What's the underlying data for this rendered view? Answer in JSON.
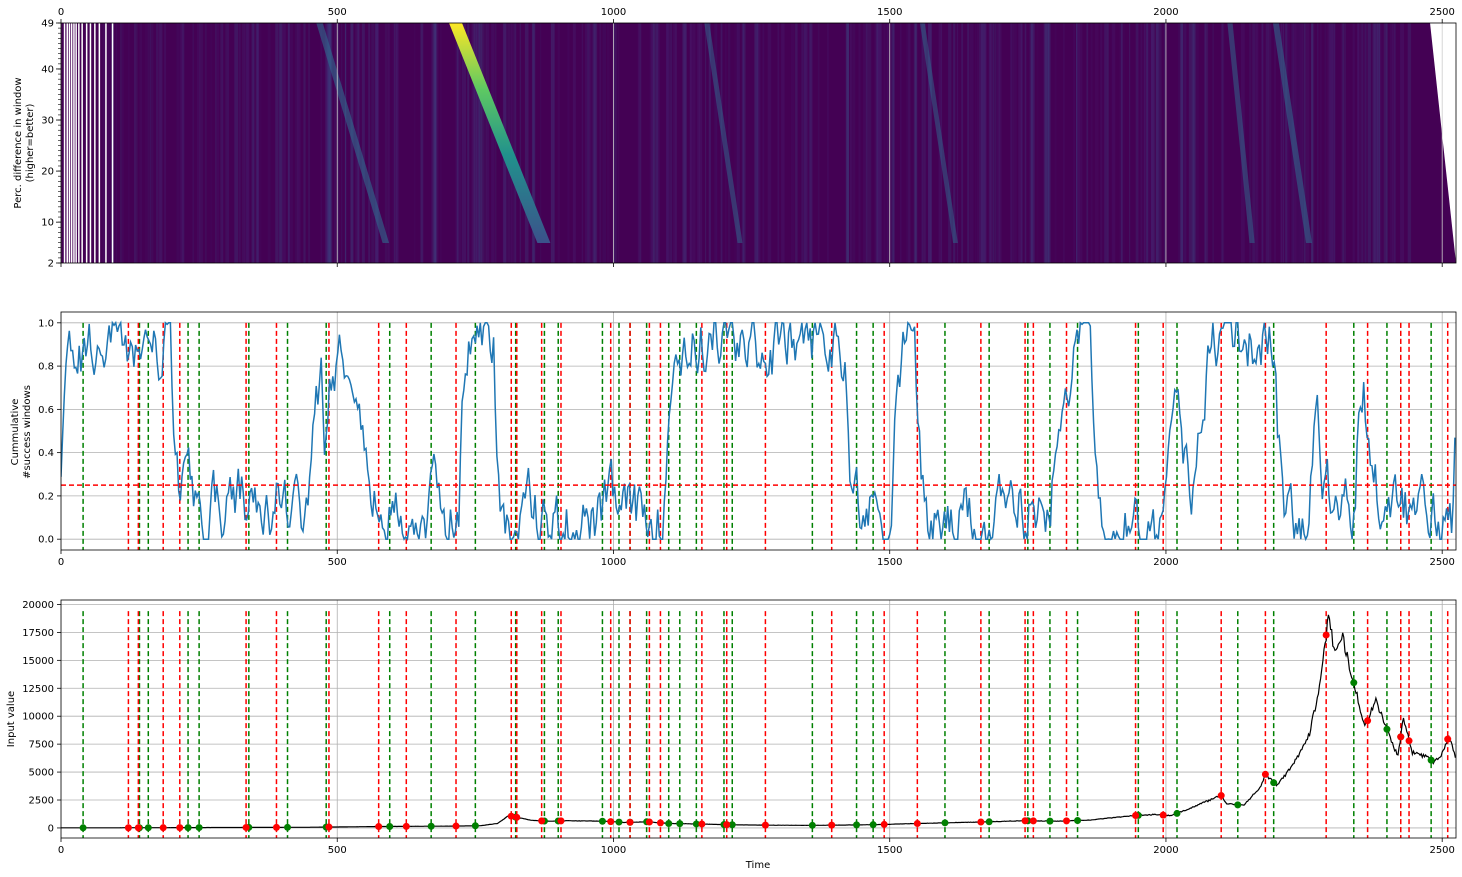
{
  "chart_data": [
    {
      "type": "heatmap",
      "ylabel_line1": "Perc. difference in window",
      "ylabel_line2": "(higher=better)",
      "xlim": [
        0,
        2525
      ],
      "ylim": [
        2,
        49
      ],
      "x_ticks": [
        0,
        500,
        1000,
        1500,
        2000,
        2500
      ],
      "y_ticks": [
        2,
        10,
        20,
        30,
        40,
        49
      ],
      "tick_position_x": "top",
      "hotspots": [
        {
          "x": 510,
          "slope": 120,
          "peak": 0.35
        },
        {
          "x": 770,
          "slope": 160,
          "peak": 1.0
        },
        {
          "x": 1190,
          "slope": 60,
          "peak": 0.2
        },
        {
          "x": 1580,
          "slope": 60,
          "peak": 0.18
        },
        {
          "x": 2130,
          "slope": 40,
          "peak": 0.22
        },
        {
          "x": 2220,
          "slope": 60,
          "peak": 0.3
        }
      ]
    },
    {
      "type": "line",
      "ylabel_line1": "Cummulative",
      "ylabel_line2": "#success windows",
      "xlim": [
        0,
        2525
      ],
      "ylim": [
        -0.05,
        1.05
      ],
      "x_ticks": [
        0,
        500,
        1000,
        1500,
        2000,
        2500
      ],
      "y_ticks": [
        0.0,
        0.2,
        0.4,
        0.6,
        0.8,
        1.0
      ],
      "y_tick_labels": [
        "0.0",
        "0.2",
        "0.4",
        "0.6",
        "0.8",
        "1.0"
      ],
      "threshold": 0.25,
      "colors": {
        "line": "#1f77b4",
        "buy": "#008000",
        "sell": "#ff0000",
        "threshold": "#ff0000"
      }
    },
    {
      "type": "line",
      "ylabel": "Input value",
      "xlabel": "Time",
      "xlim": [
        0,
        2525
      ],
      "ylim": [
        -900,
        20400
      ],
      "x_ticks": [
        0,
        500,
        1000,
        1500,
        2000,
        2500
      ],
      "y_ticks": [
        0,
        2500,
        5000,
        7500,
        10000,
        12500,
        15000,
        17500,
        20000
      ],
      "y_tick_labels": [
        "0",
        "2500",
        "5000",
        "7500",
        "10000",
        "12500",
        "15000",
        "17500",
        "20000"
      ],
      "price_points": [
        [
          0,
          10
        ],
        [
          150,
          20
        ],
        [
          300,
          40
        ],
        [
          450,
          60
        ],
        [
          560,
          120
        ],
        [
          650,
          150
        ],
        [
          700,
          160
        ],
        [
          760,
          200
        ],
        [
          790,
          400
        ],
        [
          810,
          1100
        ],
        [
          830,
          900
        ],
        [
          850,
          700
        ],
        [
          880,
          600
        ],
        [
          920,
          650
        ],
        [
          980,
          600
        ],
        [
          1020,
          500
        ],
        [
          1060,
          550
        ],
        [
          1100,
          400
        ],
        [
          1160,
          350
        ],
        [
          1220,
          280
        ],
        [
          1280,
          250
        ],
        [
          1350,
          230
        ],
        [
          1420,
          260
        ],
        [
          1480,
          300
        ],
        [
          1550,
          400
        ],
        [
          1620,
          480
        ],
        [
          1680,
          550
        ],
        [
          1740,
          650
        ],
        [
          1800,
          600
        ],
        [
          1860,
          700
        ],
        [
          1940,
          1100
        ],
        [
          1980,
          1200
        ],
        [
          2010,
          1100
        ],
        [
          2060,
          2100
        ],
        [
          2100,
          2900
        ],
        [
          2110,
          2200
        ],
        [
          2140,
          2000
        ],
        [
          2170,
          3600
        ],
        [
          2180,
          4800
        ],
        [
          2200,
          3800
        ],
        [
          2230,
          5600
        ],
        [
          2260,
          8500
        ],
        [
          2280,
          13000
        ],
        [
          2295,
          19400
        ],
        [
          2305,
          15500
        ],
        [
          2320,
          17000
        ],
        [
          2340,
          13000
        ],
        [
          2360,
          9000
        ],
        [
          2380,
          11400
        ],
        [
          2395,
          9500
        ],
        [
          2410,
          7500
        ],
        [
          2420,
          6500
        ],
        [
          2430,
          9800
        ],
        [
          2445,
          6800
        ],
        [
          2470,
          6400
        ],
        [
          2485,
          5900
        ],
        [
          2500,
          6700
        ],
        [
          2512,
          8200
        ],
        [
          2525,
          6300
        ]
      ],
      "colors": {
        "price": "#000000",
        "buy": "#008000",
        "sell": "#ff0000"
      }
    }
  ],
  "signals": {
    "buy_x": [
      40,
      142,
      158,
      230,
      250,
      340,
      410,
      480,
      595,
      670,
      750,
      823,
      875,
      900,
      980,
      1010,
      1030,
      1060,
      1100,
      1120,
      1150,
      1200,
      1215,
      1360,
      1440,
      1470,
      1600,
      1680,
      1750,
      1790,
      1840,
      1950,
      2020,
      2130,
      2195,
      2340,
      2400,
      2425,
      2480
    ],
    "sell_x": [
      122,
      140,
      185,
      215,
      335,
      390,
      485,
      575,
      625,
      715,
      815,
      825,
      870,
      905,
      995,
      1030,
      1065,
      1085,
      1160,
      1205,
      1275,
      1395,
      1490,
      1550,
      1665,
      1745,
      1760,
      1820,
      1945,
      1995,
      2100,
      2180,
      2290,
      2365,
      2425,
      2440,
      2510
    ]
  }
}
